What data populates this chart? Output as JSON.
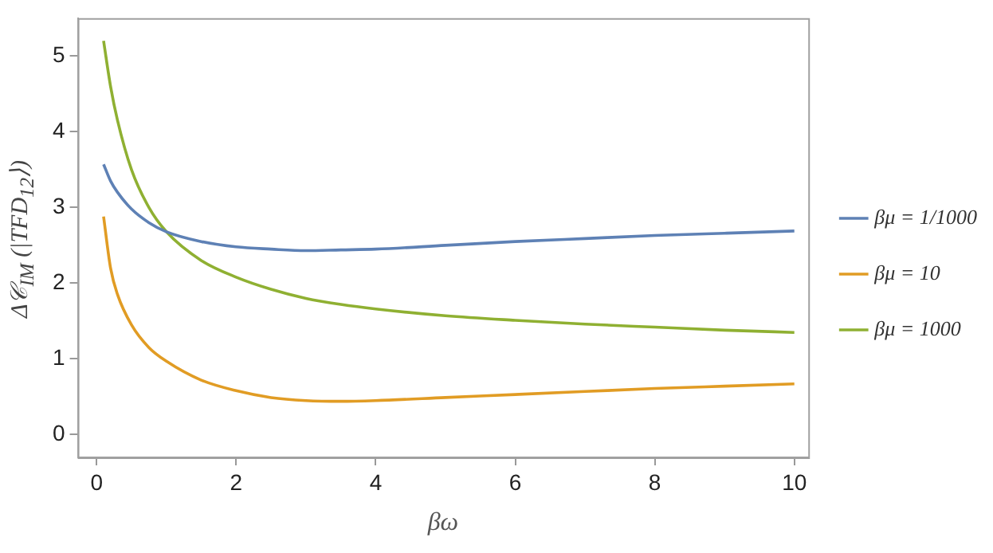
{
  "chart_data": {
    "type": "line",
    "xlabel": "βω",
    "ylabel": "Δ𝒞$_{IM}$ (|TFD$_{12}$⟩)",
    "xlim": [
      -0.27,
      10.2
    ],
    "ylim": [
      -0.3,
      5.5
    ],
    "xticks": [
      0,
      2,
      4,
      6,
      8,
      10
    ],
    "yticks": [
      0,
      1,
      2,
      3,
      4,
      5
    ],
    "grid": false,
    "legend": "right",
    "marker": "none",
    "line_style": "solid",
    "x": [
      0.1,
      0.2,
      0.3,
      0.5,
      0.75,
      1,
      1.5,
      2,
      2.5,
      3,
      3.5,
      4,
      5,
      6,
      7,
      8,
      9,
      10
    ],
    "series": [
      {
        "name": "βμ = 1/1000",
        "color": "#5e81b5",
        "values": [
          3.57,
          3.35,
          3.2,
          2.98,
          2.8,
          2.68,
          2.55,
          2.48,
          2.45,
          2.43,
          2.44,
          2.45,
          2.5,
          2.55,
          2.59,
          2.63,
          2.66,
          2.69
        ]
      },
      {
        "name": "βμ = 10",
        "color": "#e19c24",
        "values": [
          2.88,
          2.2,
          1.85,
          1.45,
          1.15,
          0.97,
          0.72,
          0.58,
          0.49,
          0.45,
          0.44,
          0.45,
          0.49,
          0.53,
          0.57,
          0.61,
          0.64,
          0.67
        ]
      },
      {
        "name": "βμ = 1000",
        "color": "#8fb032",
        "values": [
          5.2,
          4.6,
          4.15,
          3.5,
          3.0,
          2.68,
          2.3,
          2.08,
          1.92,
          1.8,
          1.72,
          1.66,
          1.57,
          1.51,
          1.46,
          1.42,
          1.38,
          1.35
        ]
      }
    ]
  }
}
